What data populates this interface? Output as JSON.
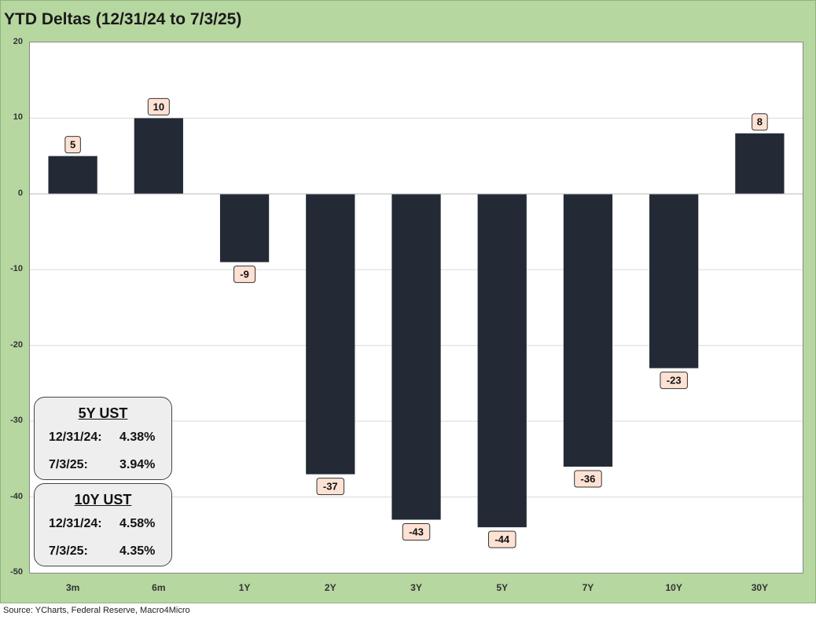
{
  "title": "YTD Deltas (12/31/24 to 7/3/25)",
  "source": "Source: YCharts, Federal Reserve, Macro4Micro",
  "colors": {
    "bar": "#232a35",
    "label_bg": "#fde2d4",
    "frame": "#b6d7a0",
    "gridline": "#d9d9d9"
  },
  "chart_data": {
    "type": "bar",
    "categories": [
      "3m",
      "6m",
      "1Y",
      "2Y",
      "3Y",
      "5Y",
      "7Y",
      "10Y",
      "30Y"
    ],
    "values": [
      5,
      10,
      -9,
      -37,
      -43,
      -44,
      -36,
      -23,
      8
    ],
    "data_labels": [
      "5",
      "10",
      "-9",
      "-37",
      "-43",
      "-44",
      "-36",
      "-23",
      "8"
    ],
    "ylim": [
      -50,
      20
    ],
    "yticks": [
      20,
      10,
      0,
      -10,
      -20,
      -30,
      -40,
      -50
    ],
    "ytick_labels": [
      "20",
      "10",
      "0",
      "-10",
      "-20",
      "-30",
      "-40",
      "-50"
    ],
    "grid": true,
    "title": "YTD Deltas (12/31/24 to 7/3/25)"
  },
  "boxes": [
    {
      "title": "5Y UST",
      "rows": [
        {
          "date": "12/31/24:",
          "value": "4.38%"
        },
        {
          "date": "7/3/25:",
          "value": "3.94%"
        }
      ]
    },
    {
      "title": "10Y UST",
      "rows": [
        {
          "date": "12/31/24:",
          "value": "4.58%"
        },
        {
          "date": "7/3/25:",
          "value": "4.35%"
        }
      ]
    }
  ]
}
